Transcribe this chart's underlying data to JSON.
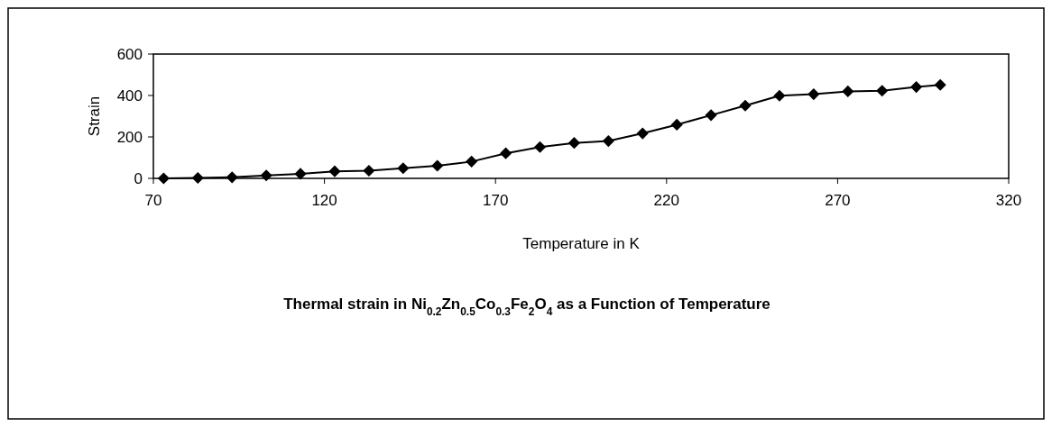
{
  "chart_data": {
    "type": "line",
    "title": "Thermal strain in Ni$_{0.2}$Zn$_{0.5}$Co$_{0.3}$Fe$_{2}$O$_{4}$ as a Function of Temperature",
    "xlabel": "Temperature in K",
    "ylabel": "Strain",
    "x": [
      73,
      83,
      93,
      103,
      113,
      123,
      133,
      143,
      153,
      163,
      173,
      183,
      193,
      203,
      213,
      223,
      233,
      243,
      253,
      263,
      273,
      283,
      293,
      300
    ],
    "series": [
      {
        "color": "#000000",
        "values": [
          0,
          2,
          5,
          14,
          22,
          34,
          37,
          49,
          61,
          81,
          121,
          151,
          171,
          180,
          217,
          259,
          305,
          351,
          399,
          406,
          420,
          423,
          441,
          451
        ]
      }
    ],
    "xlim": [
      70,
      320
    ],
    "xticks": [
      70,
      120,
      170,
      220,
      270,
      320
    ],
    "ylim": [
      0,
      600
    ],
    "yticks": [
      0,
      200,
      400,
      600
    ],
    "marker": "diamond",
    "line_style": "solid",
    "grid": false
  }
}
